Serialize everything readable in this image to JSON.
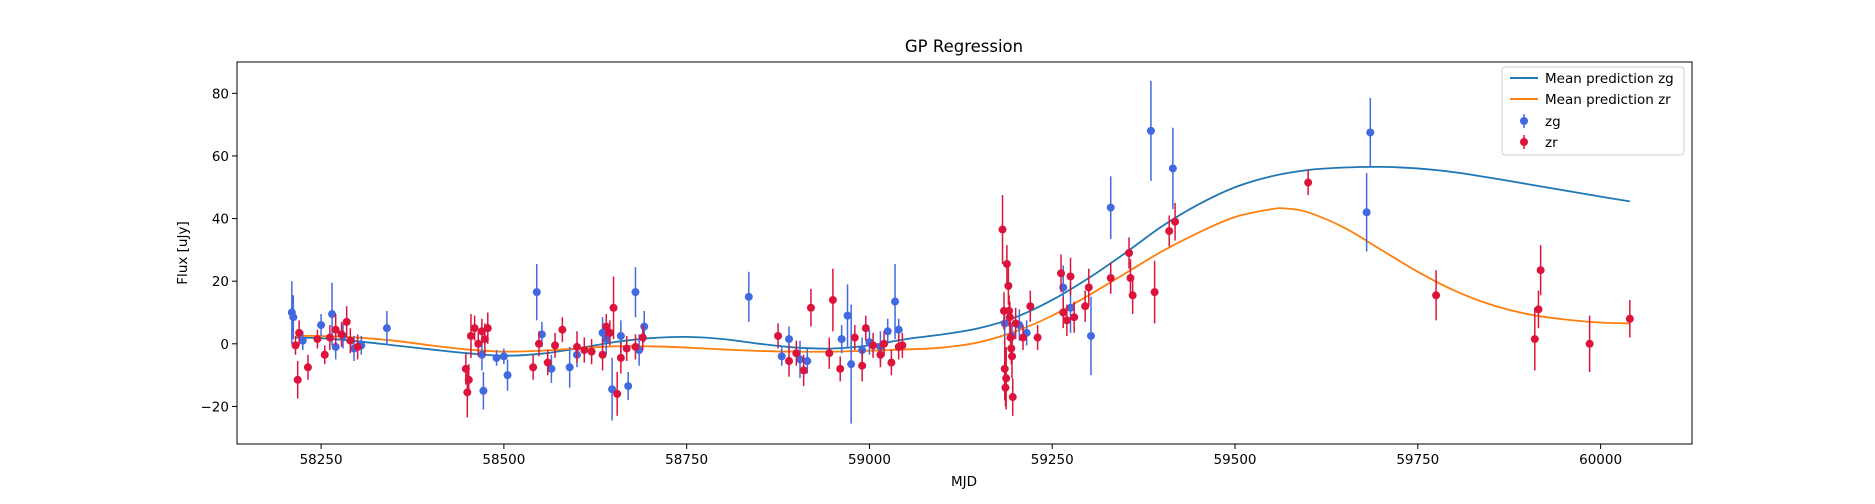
{
  "chart_data": {
    "type": "scatter",
    "title": "GP Regression",
    "xlabel": "MJD",
    "ylabel": "Flux [uJy]",
    "xlim": [
      58135,
      60125
    ],
    "ylim": [
      -32,
      90
    ],
    "xticks": [
      58250,
      58500,
      58750,
      59000,
      59250,
      59500,
      59750,
      60000
    ],
    "yticks": [
      -20,
      0,
      20,
      40,
      60,
      80
    ],
    "grid": false,
    "legend_position": "top-right",
    "legend": [
      "Mean prediction zg",
      "Mean prediction zr",
      "zg",
      "zr"
    ],
    "series": [
      {
        "name": "Mean prediction zg",
        "kind": "line",
        "color": "#1f77b4",
        "x": [
          58215,
          58250,
          58300,
          58350,
          58400,
          58450,
          58500,
          58550,
          58600,
          58650,
          58700,
          58750,
          58800,
          58850,
          58900,
          58950,
          59000,
          59050,
          59100,
          59150,
          59200,
          59250,
          59300,
          59350,
          59400,
          59450,
          59500,
          59550,
          59600,
          59650,
          59700,
          59750,
          59800,
          59850,
          59900,
          59950,
          60000,
          60040
        ],
        "y": [
          2.0,
          1.8,
          0.8,
          -0.5,
          -1.8,
          -3.0,
          -3.8,
          -3.2,
          -1.5,
          0.5,
          1.8,
          2.2,
          1.5,
          0.0,
          -1.2,
          -1.5,
          -0.5,
          1.5,
          3.0,
          5.0,
          8.5,
          14.0,
          21.0,
          29.0,
          37.5,
          44.5,
          50.0,
          53.5,
          55.5,
          56.3,
          56.5,
          56.0,
          54.8,
          53.0,
          51.0,
          49.0,
          47.0,
          45.5
        ]
      },
      {
        "name": "Mean prediction zr",
        "kind": "line",
        "color": "#ff7f0e",
        "x": [
          58215,
          58250,
          58300,
          58350,
          58400,
          58450,
          58500,
          58550,
          58600,
          58650,
          58700,
          58750,
          58800,
          58850,
          58900,
          58950,
          59000,
          59050,
          59100,
          59150,
          59200,
          59250,
          59300,
          59350,
          59400,
          59450,
          59500,
          59550,
          59570,
          59600,
          59650,
          59700,
          59750,
          59800,
          59850,
          59900,
          59950,
          60000,
          60040
        ],
        "y": [
          2.5,
          2.5,
          2.0,
          1.0,
          -0.5,
          -1.8,
          -2.5,
          -2.2,
          -1.5,
          -0.8,
          -0.8,
          -1.2,
          -1.8,
          -2.3,
          -2.5,
          -2.5,
          -2.2,
          -1.8,
          -1.2,
          0.5,
          4.0,
          9.0,
          15.5,
          22.5,
          29.5,
          35.5,
          40.5,
          43.0,
          43.2,
          42.0,
          37.0,
          30.0,
          23.0,
          17.0,
          12.5,
          9.5,
          7.8,
          6.8,
          6.5
        ]
      },
      {
        "name": "zg",
        "kind": "errorbar",
        "color": "#4169e1",
        "points": [
          [
            58210,
            10.0,
            10.0
          ],
          [
            58212,
            8.5,
            7.0
          ],
          [
            58225,
            1.0,
            3.0
          ],
          [
            58250,
            6.0,
            3.5
          ],
          [
            58265,
            9.5,
            10.0
          ],
          [
            58270,
            -1.0,
            4.0
          ],
          [
            58280,
            2.5,
            4.0
          ],
          [
            58295,
            -1.5,
            4.0
          ],
          [
            58305,
            -0.5,
            3.0
          ],
          [
            58340,
            5.0,
            5.5
          ],
          [
            58470,
            -3.5,
            5.0
          ],
          [
            58472,
            -15.0,
            6.0
          ],
          [
            58490,
            -4.5,
            2.5
          ],
          [
            58500,
            -4.0,
            2.5
          ],
          [
            58505,
            -10.0,
            5.0
          ],
          [
            58545,
            16.5,
            9.0
          ],
          [
            58552,
            3.0,
            4.0
          ],
          [
            58565,
            -8.0,
            4.5
          ],
          [
            58590,
            -7.5,
            6.5
          ],
          [
            58600,
            -3.5,
            4.0
          ],
          [
            58635,
            3.5,
            5.0
          ],
          [
            58640,
            1.5,
            5.0
          ],
          [
            58648,
            -14.5,
            10.0
          ],
          [
            58660,
            2.5,
            5.0
          ],
          [
            58670,
            -13.5,
            4.5
          ],
          [
            58680,
            16.5,
            8.0
          ],
          [
            58685,
            -2.0,
            5.0
          ],
          [
            58692,
            5.5,
            5.0
          ],
          [
            58835,
            15.0,
            8.0
          ],
          [
            58880,
            -4.0,
            3.0
          ],
          [
            58890,
            1.5,
            4.0
          ],
          [
            58905,
            -5.0,
            6.0
          ],
          [
            58915,
            -5.5,
            4.0
          ],
          [
            58962,
            1.5,
            4.5
          ],
          [
            58970,
            9.0,
            10.0
          ],
          [
            58975,
            -6.5,
            19.0
          ],
          [
            58990,
            -2.0,
            4.0
          ],
          [
            59000,
            0.5,
            4.0
          ],
          [
            59015,
            -1.0,
            5.0
          ],
          [
            59025,
            4.0,
            4.0
          ],
          [
            59035,
            13.5,
            12.0
          ],
          [
            59040,
            4.5,
            3.5
          ],
          [
            59185,
            6.5,
            4.5
          ],
          [
            59195,
            2.5,
            4.0
          ],
          [
            59205,
            6.0,
            5.0
          ],
          [
            59215,
            3.5,
            4.0
          ],
          [
            59265,
            18.0,
            7.0
          ],
          [
            59275,
            11.5,
            8.0
          ],
          [
            59303,
            2.5,
            12.5
          ],
          [
            59330,
            43.5,
            10.0
          ],
          [
            59385,
            68.0,
            16.0
          ],
          [
            59415,
            56.0,
            13.0
          ],
          [
            59680,
            42.0,
            12.5
          ],
          [
            59685,
            67.5,
            11.0
          ]
        ]
      },
      {
        "name": "zr",
        "kind": "errorbar",
        "color": "#dc143c",
        "points": [
          [
            58215,
            -0.5,
            3.0
          ],
          [
            58218,
            -11.5,
            6.0
          ],
          [
            58220,
            3.5,
            4.0
          ],
          [
            58232,
            -7.5,
            4.0
          ],
          [
            58245,
            1.5,
            3.0
          ],
          [
            58255,
            -3.5,
            3.0
          ],
          [
            58262,
            2.0,
            4.0
          ],
          [
            58270,
            4.5,
            5.0
          ],
          [
            58278,
            3.0,
            4.0
          ],
          [
            58285,
            7.0,
            5.0
          ],
          [
            58290,
            1.0,
            4.0
          ],
          [
            58300,
            -1.0,
            4.0
          ],
          [
            58448,
            -8.0,
            5.0
          ],
          [
            58450,
            -15.5,
            8.0
          ],
          [
            58452,
            -11.5,
            5.0
          ],
          [
            58455,
            2.5,
            7.0
          ],
          [
            58460,
            5.0,
            4.0
          ],
          [
            58465,
            0.0,
            4.0
          ],
          [
            58470,
            4.0,
            4.0
          ],
          [
            58474,
            1.5,
            5.0
          ],
          [
            58478,
            5.0,
            5.0
          ],
          [
            58540,
            -7.5,
            4.0
          ],
          [
            58548,
            0.0,
            4.0
          ],
          [
            58560,
            -6.0,
            4.0
          ],
          [
            58570,
            -0.5,
            4.0
          ],
          [
            58580,
            4.5,
            4.0
          ],
          [
            58600,
            -1.0,
            5.0
          ],
          [
            58610,
            -2.0,
            4.0
          ],
          [
            58620,
            -2.5,
            4.0
          ],
          [
            58635,
            -3.5,
            5.0
          ],
          [
            58640,
            5.5,
            4.0
          ],
          [
            58645,
            3.5,
            4.0
          ],
          [
            58650,
            11.5,
            10.0
          ],
          [
            58655,
            -16.0,
            7.0
          ],
          [
            58660,
            -4.5,
            5.0
          ],
          [
            58668,
            -1.5,
            4.0
          ],
          [
            58680,
            -1.0,
            4.0
          ],
          [
            58690,
            2.0,
            4.0
          ],
          [
            58875,
            2.5,
            4.0
          ],
          [
            58890,
            -5.5,
            5.0
          ],
          [
            58900,
            -3.0,
            4.0
          ],
          [
            58910,
            -8.5,
            5.0
          ],
          [
            58920,
            11.5,
            6.0
          ],
          [
            58945,
            -3.0,
            5.0
          ],
          [
            58950,
            14.0,
            10.0
          ],
          [
            58960,
            -8.0,
            4.0
          ],
          [
            58980,
            2.0,
            4.0
          ],
          [
            58990,
            -7.0,
            5.0
          ],
          [
            58995,
            5.0,
            4.0
          ],
          [
            59005,
            -0.5,
            4.0
          ],
          [
            59015,
            -3.5,
            4.0
          ],
          [
            59020,
            0.0,
            4.0
          ],
          [
            59030,
            -6.0,
            4.0
          ],
          [
            59040,
            -1.0,
            4.0
          ],
          [
            59045,
            -0.5,
            4.0
          ],
          [
            59182,
            36.5,
            11.0
          ],
          [
            59184,
            10.5,
            6.0
          ],
          [
            59185,
            -8.0,
            10.0
          ],
          [
            59186,
            -14.0,
            6.0
          ],
          [
            59187,
            -11.0,
            10.0
          ],
          [
            59188,
            25.5,
            6.0
          ],
          [
            59190,
            18.5,
            6.0
          ],
          [
            59191,
            10.5,
            5.0
          ],
          [
            59192,
            8.5,
            5.0
          ],
          [
            59193,
            2.0,
            5.0
          ],
          [
            59194,
            -1.5,
            5.0
          ],
          [
            59195,
            -4.0,
            7.0
          ],
          [
            59196,
            -17.0,
            6.0
          ],
          [
            59200,
            6.5,
            5.0
          ],
          [
            59210,
            2.0,
            4.0
          ],
          [
            59220,
            12.0,
            5.0
          ],
          [
            59230,
            2.0,
            4.0
          ],
          [
            59262,
            22.5,
            6.0
          ],
          [
            59265,
            10.0,
            5.0
          ],
          [
            59270,
            7.5,
            5.0
          ],
          [
            59275,
            21.5,
            6.0
          ],
          [
            59280,
            8.5,
            5.0
          ],
          [
            59295,
            12.0,
            5.0
          ],
          [
            59300,
            18.0,
            6.0
          ],
          [
            59330,
            21.0,
            5.0
          ],
          [
            59355,
            29.0,
            5.0
          ],
          [
            59357,
            21.0,
            6.0
          ],
          [
            59360,
            15.5,
            6.0
          ],
          [
            59390,
            16.5,
            10.0
          ],
          [
            59410,
            36.0,
            5.0
          ],
          [
            59418,
            39.0,
            6.0
          ],
          [
            59600,
            51.5,
            4.0
          ],
          [
            59775,
            15.5,
            8.0
          ],
          [
            59910,
            1.5,
            10.0
          ],
          [
            59915,
            11.0,
            6.0
          ],
          [
            59918,
            23.5,
            8.0
          ],
          [
            59985,
            0.0,
            9.0
          ],
          [
            60040,
            8.0,
            6.0
          ]
        ]
      }
    ]
  }
}
